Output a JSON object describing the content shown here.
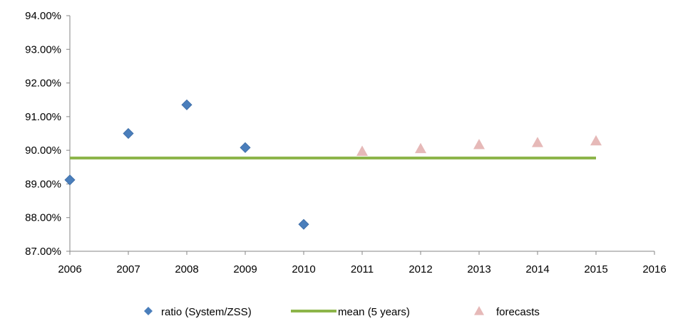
{
  "chart_data": {
    "type": "scatter",
    "x_ticks": [
      "2006",
      "2007",
      "2008",
      "2009",
      "2010",
      "2011",
      "2012",
      "2013",
      "2014",
      "2015",
      "2016"
    ],
    "y_ticks": [
      "87.00%",
      "88.00%",
      "89.00%",
      "90.00%",
      "91.00%",
      "92.00%",
      "93.00%",
      "94.00%"
    ],
    "xlim": [
      2006,
      2016
    ],
    "ylim": [
      87,
      94
    ],
    "grid": false,
    "legend_position": "bottom",
    "series": [
      {
        "name": "ratio (System/ZSS)",
        "kind": "marker",
        "marker": "diamond",
        "color": "#4a7ebb",
        "x": [
          2006,
          2007,
          2008,
          2009,
          2010
        ],
        "y": [
          89.12,
          90.5,
          91.35,
          90.08,
          87.8
        ]
      },
      {
        "name": "mean (5 years)",
        "kind": "line",
        "color": "#8db54a",
        "x": [
          2006,
          2015
        ],
        "y": [
          89.77,
          89.77
        ]
      },
      {
        "name": "forecasts",
        "kind": "marker",
        "marker": "triangle",
        "color": "#e6b9b8",
        "x": [
          2011,
          2012,
          2013,
          2014,
          2015
        ],
        "y": [
          89.97,
          90.05,
          90.17,
          90.23,
          90.28
        ]
      }
    ]
  }
}
